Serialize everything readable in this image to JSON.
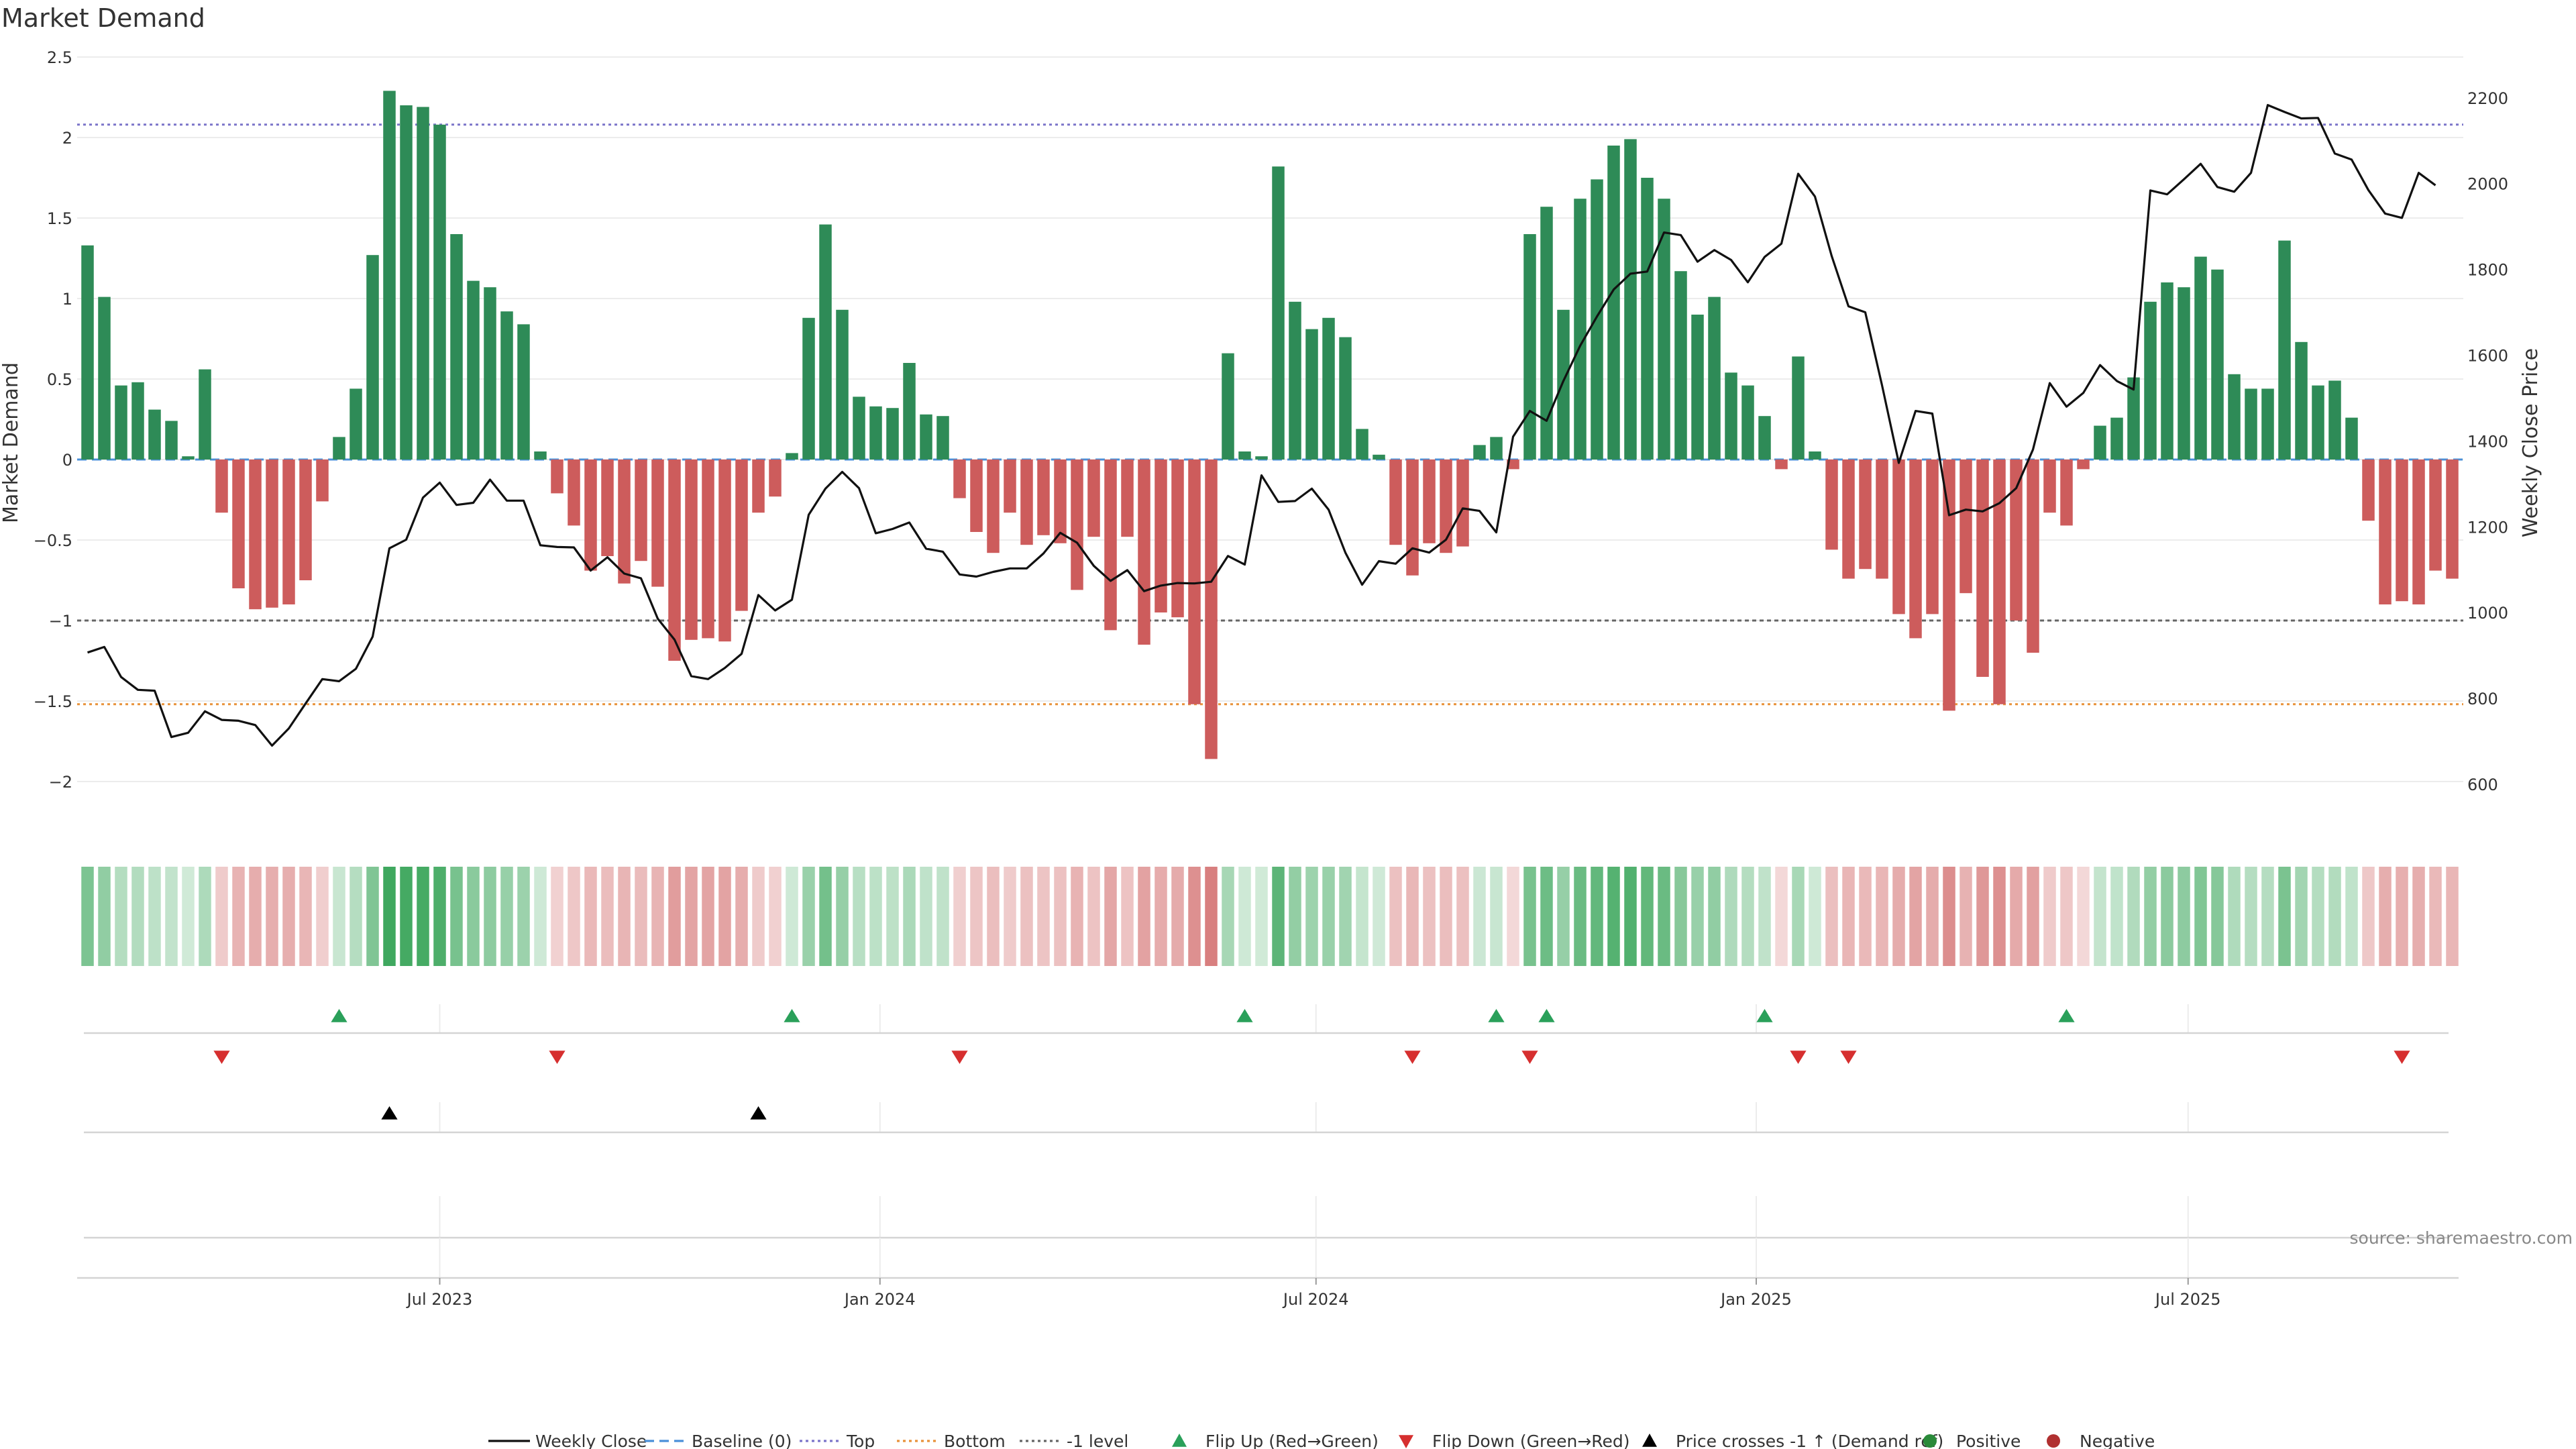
{
  "chart_data": {
    "type": "bar",
    "title": "Market Demand",
    "ylabel": "Market Demand",
    "y2label": "Weekly Close Price",
    "ylim": [
      -2.25,
      2.5
    ],
    "y2lim": [
      512.5,
      2295
    ],
    "yticks": [
      "2.5",
      "2",
      "1.5",
      "1",
      "0.5",
      "0",
      "-0.5",
      "-1",
      "-1.5",
      "-2"
    ],
    "y2ticks": [
      "2200",
      "2000",
      "1800",
      "1600",
      "1400",
      "1200",
      "1000",
      "800",
      "600"
    ],
    "xticks": [
      "Jul 2023",
      "Jan 2024",
      "Jul 2024",
      "Jan 2025",
      "Jul 2025"
    ],
    "xtick_week_index": [
      21.5,
      47.75,
      73.75,
      100,
      125.75
    ],
    "levels": {
      "top": 2.08,
      "bottom": -1.52,
      "minus_one": -1.0,
      "baseline": 0
    },
    "level_colors": {
      "top": "#7b74c9",
      "bottom": "#e8923a",
      "minus_one": "#666666",
      "baseline": "#4a90d9"
    },
    "bar_colors": {
      "positive": "#2e8b57",
      "negative": "#cd5c5c"
    },
    "demand": [
      1.33,
      1.01,
      0.46,
      0.48,
      0.31,
      0.24,
      0.02,
      0.56,
      -0.33,
      -0.8,
      -0.93,
      -0.92,
      -0.9,
      -0.75,
      -0.26,
      0.14,
      0.44,
      1.27,
      2.29,
      2.2,
      2.19,
      2.08,
      1.4,
      1.11,
      1.07,
      0.92,
      0.84,
      0.05,
      -0.21,
      -0.41,
      -0.69,
      -0.6,
      -0.77,
      -0.63,
      -0.79,
      -1.25,
      -1.12,
      -1.11,
      -1.13,
      -0.94,
      -0.33,
      -0.23,
      0.04,
      0.88,
      1.46,
      0.93,
      0.39,
      0.33,
      0.32,
      0.6,
      0.28,
      0.27,
      -0.24,
      -0.45,
      -0.58,
      -0.33,
      -0.53,
      -0.47,
      -0.52,
      -0.81,
      -0.48,
      -1.06,
      -0.48,
      -1.15,
      -0.95,
      -0.98,
      -1.52,
      -1.86,
      0.66,
      0.05,
      0.02,
      1.82,
      0.98,
      0.81,
      0.88,
      0.76,
      0.19,
      0.03,
      -0.53,
      -0.72,
      -0.52,
      -0.58,
      -0.54,
      0.09,
      0.14,
      -0.06,
      1.4,
      1.57,
      0.93,
      1.62,
      1.74,
      1.95,
      1.99,
      1.75,
      1.62,
      1.17,
      0.9,
      1.01,
      0.54,
      0.46,
      0.27,
      -0.06,
      0.64,
      0.05,
      -0.56,
      -0.74,
      -0.68,
      -0.74,
      -0.96,
      -1.11,
      -0.96,
      -1.56,
      -0.83,
      -1.35,
      -1.52,
      -1.0,
      -1.2,
      -0.33,
      -0.41,
      -0.06,
      0.21,
      0.26,
      0.51,
      0.98,
      1.1,
      1.07,
      1.26,
      1.18,
      0.53,
      0.44,
      0.44,
      1.36,
      0.73,
      0.46,
      0.49,
      0.26,
      -0.38,
      -0.9,
      -0.88,
      -0.9,
      -0.69,
      -0.74
    ],
    "weekly_close": [
      907,
      920,
      850,
      820,
      818,
      710,
      720,
      770,
      750,
      748,
      738,
      690,
      730,
      788,
      845,
      840,
      869,
      944,
      1150,
      1170,
      1268,
      1303,
      1251,
      1256,
      1310,
      1261,
      1261,
      1157,
      1153,
      1152,
      1098,
      1129,
      1091,
      1080,
      986,
      937,
      852,
      845,
      871,
      904,
      1041,
      1005,
      1030,
      1228,
      1289,
      1328,
      1290,
      1185,
      1195,
      1210,
      1149,
      1142,
      1089,
      1084,
      1095,
      1103,
      1103,
      1138,
      1186,
      1163,
      1109,
      1074,
      1099,
      1050,
      1063,
      1069,
      1068,
      1072,
      1132,
      1112,
      1320,
      1258,
      1260,
      1289,
      1240,
      1140,
      1065,
      1120,
      1114,
      1150,
      1140,
      1170,
      1243,
      1237,
      1187,
      1410,
      1470,
      1447,
      1540,
      1622,
      1690,
      1753,
      1790,
      1795,
      1886,
      1880,
      1818,
      1845,
      1822,
      1770,
      1829,
      1860,
      2023,
      1970,
      1831,
      1714,
      1700,
      1530,
      1349,
      1470,
      1464,
      1227,
      1240,
      1236,
      1255,
      1290,
      1380,
      1535,
      1480,
      1512,
      1577,
      1540,
      1520,
      1984,
      1975,
      2010,
      2046,
      1992,
      1981,
      2025,
      2183,
      2167,
      2152,
      2153,
      2070,
      2056,
      1985,
      1930,
      1920,
      2025,
      1996
    ],
    "flip_up_weeks": [
      15,
      42,
      69,
      84,
      87,
      100,
      118
    ],
    "flip_down_weeks": [
      8,
      28,
      52,
      79,
      86,
      102,
      105,
      138
    ],
    "price_cross_weeks": [
      18,
      40
    ],
    "legend": [
      {
        "label": "Weekly Close",
        "marker": "line-solid",
        "color": "#111111"
      },
      {
        "label": "Baseline (0)",
        "marker": "line-dashed",
        "color": "#4a90d9"
      },
      {
        "label": "Top",
        "marker": "line-dotted",
        "color": "#7b74c9"
      },
      {
        "label": "Bottom",
        "marker": "line-dotted",
        "color": "#e8923a"
      },
      {
        "label": "-1 level",
        "marker": "line-dotted",
        "color": "#666666"
      },
      {
        "label": "Flip Up (Red→Green)",
        "marker": "triangle-up",
        "color": "#2aa05a"
      },
      {
        "label": "Flip Down (Green→Red)",
        "marker": "triangle-down",
        "color": "#d62f2f"
      },
      {
        "label": "Price crosses -1 ↑ (Demand ref)",
        "marker": "triangle-up",
        "color": "#000000"
      },
      {
        "label": "Positive",
        "marker": "circle",
        "color": "#2a8a3a"
      },
      {
        "label": "Negative",
        "marker": "circle",
        "color": "#b03030"
      }
    ]
  },
  "source": "source: sharemaestro.com"
}
